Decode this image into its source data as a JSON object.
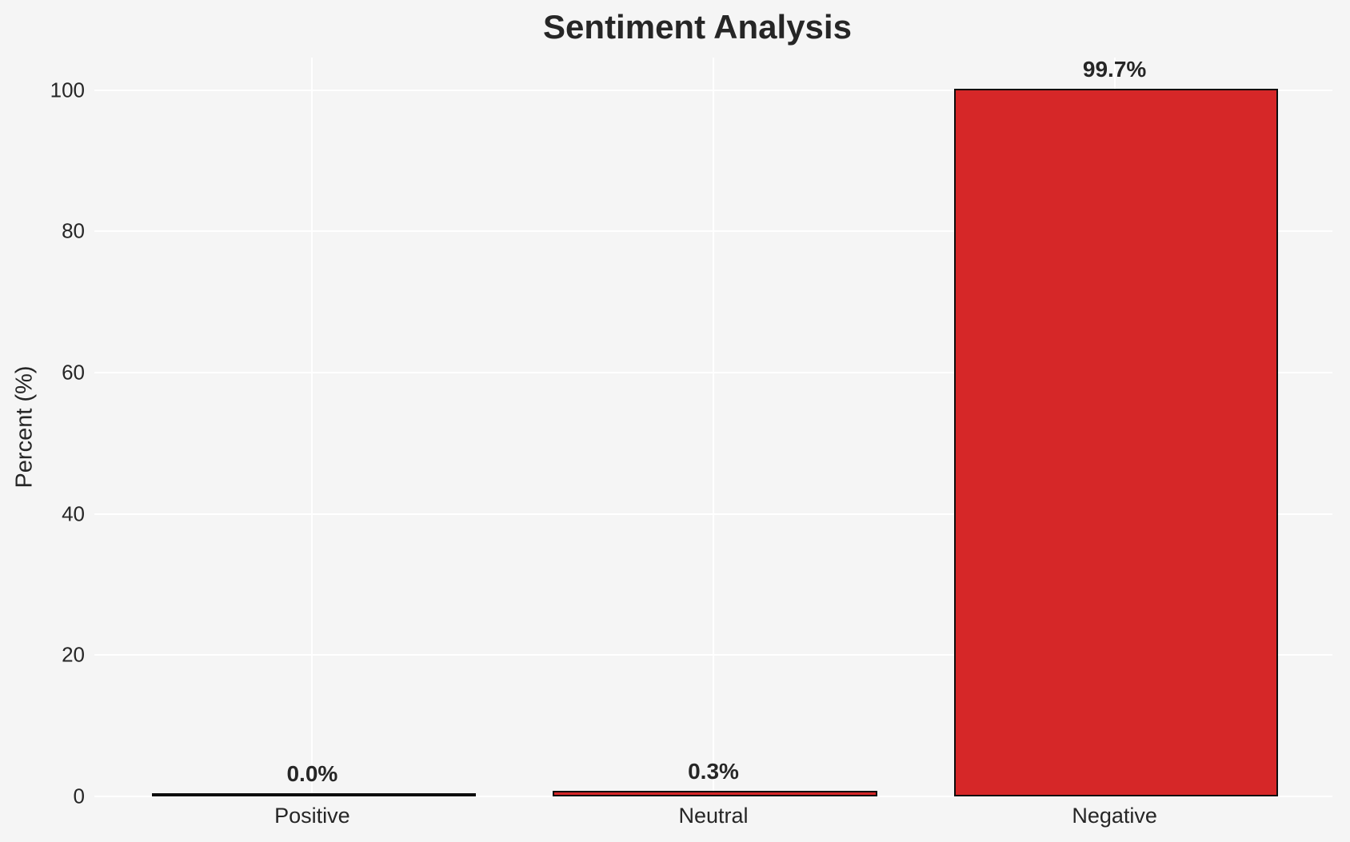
{
  "title": "Sentiment Analysis",
  "colors": {
    "background": "#f5f5f5",
    "gridline": "#ffffff",
    "bar_fill": "#d62728",
    "bar_edge": "#0d0d0d",
    "text": "#262626"
  },
  "chart_data": {
    "type": "bar",
    "title": "Sentiment Analysis",
    "categories": [
      "Positive",
      "Neutral",
      "Negative"
    ],
    "values": [
      0.0,
      0.3,
      99.7
    ],
    "value_labels": [
      "0.0%",
      "0.3%",
      "99.7%"
    ],
    "xlabel": "",
    "ylabel": "Percent (%)",
    "yticks": [
      0,
      20,
      40,
      60,
      80,
      100
    ],
    "ylim": [
      0,
      104.6
    ],
    "xlim": [
      -0.543,
      2.543
    ],
    "bar_width_units": 0.8,
    "grid": "on",
    "grid_orientation": "both",
    "legend": "none",
    "bar_color": "#d62728",
    "bar_edge_color": "#0d0d0d"
  }
}
